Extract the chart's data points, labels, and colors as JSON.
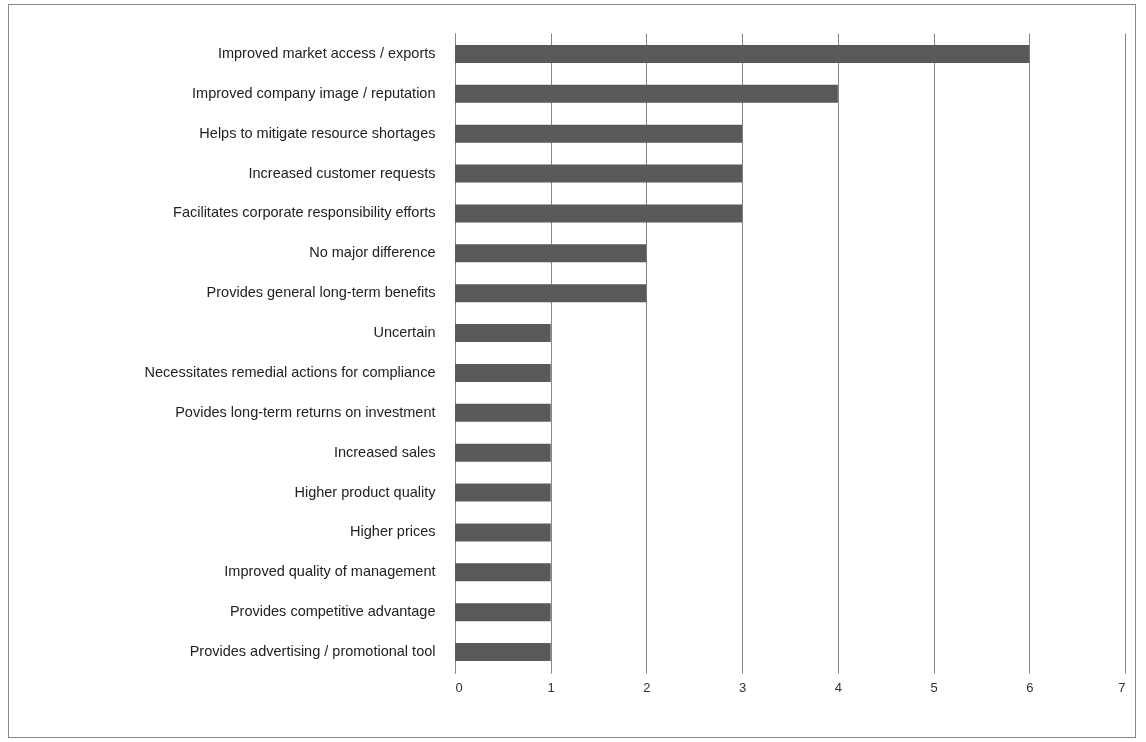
{
  "chart_data": {
    "type": "bar",
    "orientation": "horizontal",
    "categories": [
      "Improved market access / exports",
      "Improved company image / reputation",
      "Helps to mitigate resource shortages",
      "Increased customer requests",
      "Facilitates corporate responsibility efforts",
      "No major difference",
      "Provides general long-term benefits",
      "Uncertain",
      "Necessitates remedial actions for compliance",
      "Povides long-term returns on investment",
      "Increased sales",
      "Higher product quality",
      "Higher prices",
      "Improved quality of management",
      "Provides competitive advantage",
      "Provides advertising / promotional tool"
    ],
    "values": [
      6,
      4,
      3,
      3,
      3,
      2,
      2,
      1,
      1,
      1,
      1,
      1,
      1,
      1,
      1,
      1
    ],
    "color": "#595959",
    "xlim": [
      0,
      7
    ],
    "xticks": [
      0,
      1,
      2,
      3,
      4,
      5,
      6,
      7
    ],
    "grid": "x"
  }
}
